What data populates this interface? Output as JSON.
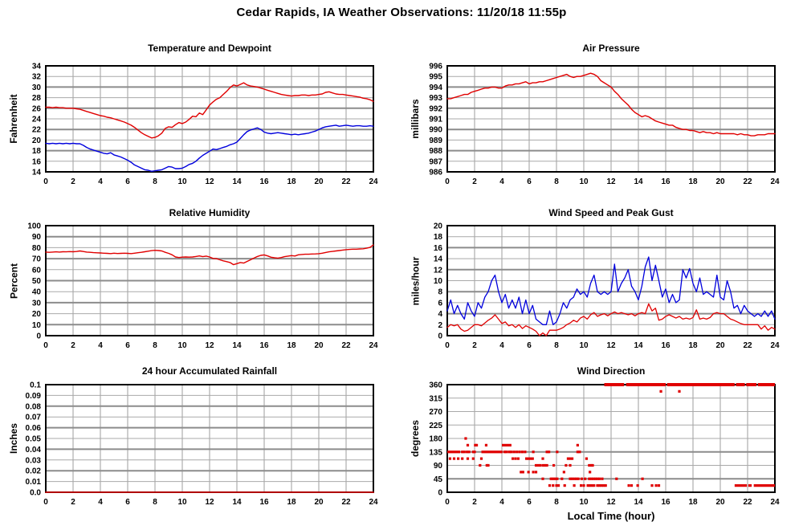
{
  "page_title": "Cedar Rapids, IA Weather Observations: 11/20/18 11:55p",
  "x_axis": {
    "min": 0,
    "max": 24,
    "tick_step": 2,
    "label": "Local Time (hour)"
  },
  "colors": {
    "red": "#e00000",
    "blue": "#0000dd",
    "dark_red": "#b00000",
    "grid_thin": "#a9a9a9",
    "grid_thick": "#8c8c8c",
    "grid_vertical": "#9c9c9c",
    "frame": "#000000"
  },
  "chart_data": [
    {
      "type": "line",
      "title": "Temperature and Dewpoint",
      "ylabel": "Fahrenheit",
      "ylim": [
        14,
        34
      ],
      "ytick_step": 2,
      "thick_gridlines": [
        18,
        22,
        26,
        30
      ],
      "series": [
        {
          "name": "Temperature",
          "color": "#e00000",
          "width": 1.4,
          "x_start": 0,
          "x_step": 0.25,
          "values": [
            26.2,
            26.2,
            26.1,
            26.2,
            26.1,
            26.1,
            26.0,
            26.0,
            26.0,
            25.9,
            25.8,
            25.6,
            25.4,
            25.2,
            25.0,
            24.8,
            24.6,
            24.5,
            24.3,
            24.2,
            24.0,
            23.8,
            23.6,
            23.4,
            23.1,
            22.8,
            22.4,
            21.9,
            21.4,
            21.0,
            20.7,
            20.4,
            20.5,
            20.8,
            21.3,
            22.2,
            22.5,
            22.4,
            22.9,
            23.3,
            23.1,
            23.4,
            23.9,
            24.5,
            24.4,
            25.1,
            24.8,
            25.7,
            26.6,
            27.2,
            27.7,
            28.0,
            28.6,
            29.2,
            29.9,
            30.4,
            30.2,
            30.5,
            30.8,
            30.4,
            30.2,
            30.1,
            30.0,
            29.8,
            29.6,
            29.4,
            29.2,
            29.0,
            28.8,
            28.6,
            28.5,
            28.4,
            28.3,
            28.4,
            28.4,
            28.5,
            28.5,
            28.4,
            28.5,
            28.5,
            28.6,
            28.7,
            29.0,
            29.1,
            28.9,
            28.7,
            28.6,
            28.6,
            28.5,
            28.4,
            28.3,
            28.2,
            28.1,
            27.9,
            27.8,
            27.6,
            27.3
          ]
        },
        {
          "name": "Dewpoint",
          "color": "#0000dd",
          "width": 1.4,
          "x_start": 0,
          "x_step": 0.25,
          "values": [
            19.4,
            19.3,
            19.4,
            19.3,
            19.4,
            19.3,
            19.4,
            19.3,
            19.4,
            19.3,
            19.3,
            19.0,
            18.6,
            18.3,
            18.1,
            17.9,
            17.7,
            17.5,
            17.4,
            17.6,
            17.2,
            17.0,
            16.8,
            16.5,
            16.2,
            15.8,
            15.3,
            15.0,
            14.7,
            14.4,
            14.3,
            14.1,
            14.2,
            14.3,
            14.4,
            14.7,
            15.0,
            14.9,
            14.6,
            14.6,
            14.7,
            15.0,
            15.4,
            15.6,
            16.0,
            16.6,
            17.1,
            17.5,
            17.9,
            18.3,
            18.2,
            18.4,
            18.6,
            18.8,
            19.1,
            19.3,
            19.6,
            20.3,
            21.0,
            21.6,
            21.9,
            22.1,
            22.3,
            22.0,
            21.5,
            21.3,
            21.2,
            21.3,
            21.4,
            21.3,
            21.2,
            21.1,
            21.0,
            21.1,
            21.0,
            21.1,
            21.2,
            21.3,
            21.5,
            21.7,
            22.0,
            22.3,
            22.5,
            22.6,
            22.7,
            22.8,
            22.6,
            22.7,
            22.8,
            22.7,
            22.6,
            22.7,
            22.7,
            22.6,
            22.6,
            22.7,
            22.6
          ]
        }
      ]
    },
    {
      "type": "line",
      "title": "Air Pressure",
      "ylabel": "millibars",
      "ylim": [
        986,
        996
      ],
      "ytick_step": 1,
      "thick_gridlines": [
        988,
        990,
        992,
        994
      ],
      "series": [
        {
          "name": "Pressure",
          "color": "#e00000",
          "width": 1.4,
          "x_start": 0,
          "x_step": 0.25,
          "values": [
            992.9,
            992.9,
            993.0,
            993.1,
            993.2,
            993.3,
            993.3,
            993.5,
            993.6,
            993.7,
            993.8,
            993.9,
            993.9,
            994.0,
            994.0,
            993.9,
            993.9,
            994.1,
            994.2,
            994.2,
            994.3,
            994.3,
            994.4,
            994.5,
            994.3,
            994.4,
            994.4,
            994.5,
            994.5,
            994.6,
            994.7,
            994.8,
            994.9,
            995.0,
            995.1,
            995.2,
            995.0,
            994.9,
            995.0,
            995.0,
            995.1,
            995.2,
            995.3,
            995.2,
            995.0,
            994.6,
            994.4,
            994.2,
            994.0,
            993.6,
            993.3,
            992.9,
            992.6,
            992.3,
            991.9,
            991.6,
            991.4,
            991.2,
            991.3,
            991.2,
            991.0,
            990.8,
            990.7,
            990.6,
            990.5,
            990.4,
            990.4,
            990.2,
            990.1,
            990.0,
            990.0,
            989.9,
            989.9,
            989.8,
            989.7,
            989.8,
            989.7,
            989.7,
            989.6,
            989.7,
            989.6,
            989.6,
            989.6,
            989.6,
            989.6,
            989.5,
            989.6,
            989.5,
            989.5,
            989.4,
            989.4,
            989.5,
            989.5,
            989.5,
            989.6,
            989.6,
            989.6
          ]
        }
      ]
    },
    {
      "type": "line",
      "title": "Relative Humidity",
      "ylabel": "Percent",
      "ylim": [
        0,
        100
      ],
      "ytick_step": 10,
      "thick_gridlines": [
        10,
        30,
        50,
        70,
        90
      ],
      "series": [
        {
          "name": "Relative Humidity",
          "color": "#e00000",
          "width": 1.4,
          "x_start": 0,
          "x_step": 0.25,
          "values": [
            76,
            75.8,
            76,
            76.2,
            76,
            76.3,
            76.2,
            76.4,
            76.3,
            76.5,
            77,
            76.5,
            76,
            75.8,
            75.5,
            75.3,
            75.2,
            75,
            74.8,
            74.6,
            75,
            74.7,
            74.8,
            75,
            74.8,
            74.6,
            75,
            75.4,
            75.8,
            76.3,
            76.8,
            77.3,
            77.6,
            77.4,
            77,
            75.8,
            74.8,
            73.5,
            71.5,
            71,
            71.4,
            71.5,
            71.4,
            71.5,
            72,
            72.5,
            71.8,
            72.3,
            71.5,
            70.2,
            70,
            69,
            68,
            67.3,
            66.5,
            64.5,
            65.5,
            66.5,
            66,
            67.5,
            69,
            70.5,
            72,
            73,
            73.4,
            72.5,
            71.3,
            70.8,
            70.5,
            71,
            71.8,
            72.3,
            72.8,
            72.4,
            73.5,
            73.8,
            74,
            74,
            74.2,
            74.3,
            74.5,
            75,
            75.6,
            76.2,
            76.6,
            77,
            77.4,
            77.8,
            78.2,
            78.4,
            78.6,
            78.6,
            78.8,
            79,
            79.5,
            80.2,
            82.5
          ]
        }
      ]
    },
    {
      "type": "line",
      "title": "Wind Speed and Peak Gust",
      "ylabel": "miles/hour",
      "ylim": [
        0,
        20
      ],
      "ytick_step": 2,
      "thick_gridlines": [
        4,
        8,
        12,
        16
      ],
      "series": [
        {
          "name": "Peak Gust",
          "color": "#0000dd",
          "width": 1.3,
          "x_start": 0,
          "x_step": 0.25,
          "values": [
            4.5,
            6.5,
            4.0,
            5.5,
            4.0,
            3.0,
            6.0,
            4.5,
            3.5,
            6.0,
            5.0,
            7.0,
            8.0,
            10.0,
            11.0,
            8.0,
            6.0,
            7.5,
            5.0,
            6.5,
            5.0,
            7.0,
            4.0,
            6.5,
            4.0,
            5.5,
            3.0,
            2.5,
            2.0,
            2.0,
            4.5,
            2.0,
            2.5,
            4.0,
            6.0,
            5.0,
            6.5,
            7.0,
            8.5,
            7.5,
            8.0,
            7.0,
            9.5,
            11.0,
            8.0,
            7.5,
            8.0,
            7.5,
            8.0,
            13.0,
            8.0,
            9.5,
            10.5,
            12.0,
            9.0,
            8.0,
            6.5,
            9.0,
            12.5,
            14.3,
            10.0,
            12.8,
            10.0,
            7.0,
            8.5,
            6.0,
            7.5,
            6.0,
            6.5,
            12.0,
            10.5,
            12.2,
            9.5,
            8.0,
            10.5,
            7.5,
            8.0,
            7.5,
            7.0,
            11.0,
            7.0,
            6.5,
            10.0,
            8.0,
            5.0,
            5.5,
            4.0,
            5.5,
            4.5,
            4.0,
            3.5,
            4.0,
            3.5,
            4.5,
            3.5,
            4.5,
            3.0
          ]
        },
        {
          "name": "Wind Speed",
          "color": "#e00000",
          "width": 1.3,
          "x_start": 0,
          "x_step": 0.25,
          "values": [
            1.5,
            2.0,
            1.8,
            2.0,
            1.2,
            0.8,
            1.0,
            1.5,
            2.0,
            2.0,
            1.8,
            2.3,
            2.8,
            3.2,
            3.8,
            3.0,
            2.2,
            2.5,
            1.8,
            2.0,
            1.5,
            2.0,
            1.3,
            1.8,
            1.5,
            1.2,
            0.8,
            0.0,
            0.5,
            0.0,
            1.0,
            1.0,
            1.0,
            1.2,
            1.5,
            2.0,
            2.3,
            2.8,
            2.5,
            3.2,
            3.5,
            3.0,
            3.8,
            4.2,
            3.5,
            3.8,
            4.0,
            3.6,
            4.0,
            4.3,
            4.0,
            4.2,
            4.0,
            3.8,
            4.0,
            3.6,
            4.0,
            4.2,
            4.0,
            5.8,
            4.5,
            5.0,
            2.8,
            3.0,
            3.5,
            3.8,
            3.5,
            3.2,
            3.5,
            3.0,
            3.2,
            3.0,
            3.3,
            4.7,
            3.0,
            3.2,
            3.0,
            3.3,
            4.0,
            4.2,
            4.0,
            4.0,
            3.5,
            3.0,
            2.8,
            2.5,
            2.2,
            2.0,
            2.0,
            2.0,
            2.0,
            2.0,
            1.2,
            1.8,
            1.0,
            1.5,
            1.2
          ]
        }
      ]
    },
    {
      "type": "line",
      "title": "24 hour Accumulated Rainfall",
      "ylabel": "Inches",
      "ylim": [
        0,
        0.1
      ],
      "ytick_step": 0.01,
      "ytick_labels": [
        "0.0",
        "0.01",
        "0.02",
        "0.03",
        "0.04",
        "0.05",
        "0.06",
        "0.07",
        "0.08",
        "0.09",
        "0.1"
      ],
      "thick_gridlines": [
        0.02,
        0.04,
        0.06,
        0.08
      ],
      "series": [
        {
          "name": "Rainfall",
          "color": "#b00000",
          "width": 2,
          "x_start": 0,
          "x_step": 12,
          "values": [
            0,
            0,
            0
          ]
        }
      ]
    },
    {
      "type": "scatter",
      "title": "Wind Direction",
      "ylabel": "degrees",
      "xlabel": "Local Time (hour)",
      "ylim": [
        0,
        360
      ],
      "ytick_step": 45,
      "thick_gridlines": [
        45,
        135
      ],
      "marker_color": "#e00000",
      "marker_size": 3.2,
      "segments": [
        {
          "deg": 360,
          "w": 4,
          "runs": [
            [
              11.5,
              12.95
            ],
            [
              13.1,
              16.0
            ],
            [
              16.1,
              21.05
            ],
            [
              21.15,
              21.8
            ],
            [
              21.9,
              22.65
            ],
            [
              22.75,
              24
            ]
          ]
        },
        {
          "deg": 135,
          "w": 3.2,
          "runs": [
            [
              0,
              0.95
            ],
            [
              2.5,
              4.05
            ]
          ]
        },
        {
          "deg": 157.5,
          "w": 3.2,
          "runs": [
            [
              4.0,
              4.7
            ]
          ]
        },
        {
          "deg": 22.5,
          "w": 3.2,
          "runs": [
            [
              21.05,
              21.95
            ],
            [
              22.05,
              22.3
            ],
            [
              22.45,
              24
            ]
          ]
        }
      ],
      "groups": [
        {
          "deg": 180,
          "x": [
            1.35
          ]
        },
        {
          "deg": 157.5,
          "x": [
            1.5,
            2.05,
            2.15,
            2.85,
            9.55
          ]
        },
        {
          "deg": 135,
          "x": [
            1.1,
            1.25,
            1.45,
            1.6,
            1.9,
            2.0,
            4.2,
            4.35,
            4.55,
            4.7,
            4.9,
            5.1,
            5.3,
            5.5,
            5.7,
            6.3,
            7.3,
            7.45,
            8.05,
            9.55,
            9.7
          ]
        },
        {
          "deg": 112.5,
          "x": [
            0.2,
            0.5,
            0.8,
            1.1,
            1.5,
            1.9,
            2.5,
            4.8,
            5.0,
            5.2,
            5.8,
            5.95,
            6.1,
            6.25,
            7.0,
            8.85,
            9.0,
            9.15,
            10.2
          ]
        },
        {
          "deg": 90,
          "x": [
            2.4,
            2.9,
            3.0,
            6.5,
            6.65,
            6.8,
            7.0,
            7.15,
            7.3,
            7.8,
            8.7,
            9.0,
            10.4,
            10.55,
            10.65
          ]
        },
        {
          "deg": 67.5,
          "x": [
            5.4,
            5.55,
            5.95,
            6.3,
            6.5,
            8.55,
            10.45
          ]
        },
        {
          "deg": 45,
          "x": [
            7.0,
            7.6,
            7.75,
            7.9,
            8.05,
            8.4,
            9.0,
            9.15,
            9.3,
            9.45,
            9.6,
            9.85,
            10.1,
            10.4,
            10.55,
            10.7,
            10.85,
            11.0,
            11.15,
            11.35,
            12.4,
            14.3
          ]
        },
        {
          "deg": 22.5,
          "x": [
            7.5,
            7.75,
            8.0,
            8.15,
            8.6,
            9.3,
            9.8,
            10.0,
            10.3,
            10.45,
            10.6,
            10.75,
            11.0,
            11.15,
            11.3,
            11.45,
            11.6,
            13.3,
            13.5,
            13.95,
            15.0,
            15.3,
            15.5
          ]
        },
        {
          "deg": 337.5,
          "x": [
            15.65,
            17.0
          ]
        }
      ]
    }
  ]
}
